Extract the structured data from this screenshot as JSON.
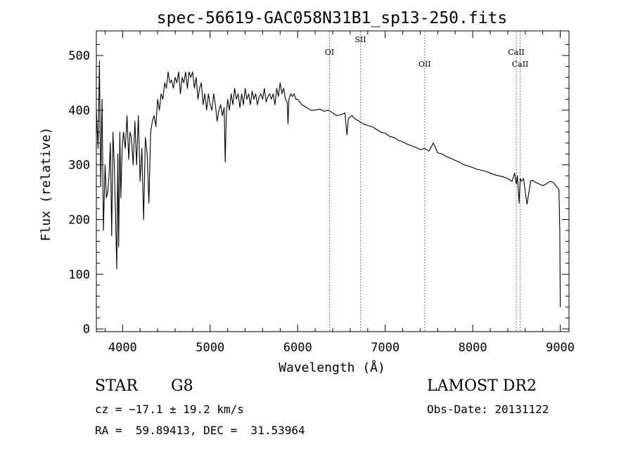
{
  "chart_data": {
    "type": "line",
    "title": "spec-56619-GAC058N31B1_sp13-250.fits",
    "xlabel": "Wavelength (Å)",
    "ylabel": "Flux (relative)",
    "xlim": [
      3700,
      9100
    ],
    "ylim": [
      -5,
      545
    ],
    "xticks": [
      4000,
      5000,
      6000,
      7000,
      8000,
      9000
    ],
    "yticks": [
      0,
      100,
      200,
      300,
      400,
      500
    ],
    "grid": false,
    "series": [
      {
        "line_color": "#000000",
        "x": [
          3700,
          3720,
          3735,
          3750,
          3765,
          3780,
          3800,
          3815,
          3830,
          3845,
          3860,
          3875,
          3890,
          3905,
          3920,
          3933,
          3945,
          3955,
          3968,
          3980,
          3995,
          4010,
          4030,
          4050,
          4070,
          4085,
          4100,
          4120,
          4140,
          4160,
          4180,
          4200,
          4220,
          4240,
          4260,
          4280,
          4300,
          4320,
          4340,
          4360,
          4380,
          4400,
          4420,
          4440,
          4460,
          4480,
          4500,
          4520,
          4540,
          4560,
          4580,
          4600,
          4620,
          4640,
          4660,
          4680,
          4700,
          4720,
          4740,
          4760,
          4780,
          4800,
          4820,
          4840,
          4860,
          4880,
          4900,
          4920,
          4940,
          4960,
          4980,
          5000,
          5020,
          5040,
          5060,
          5080,
          5100,
          5120,
          5140,
          5160,
          5172,
          5184,
          5200,
          5220,
          5240,
          5260,
          5280,
          5300,
          5320,
          5340,
          5360,
          5380,
          5400,
          5420,
          5440,
          5460,
          5480,
          5500,
          5520,
          5540,
          5560,
          5580,
          5600,
          5620,
          5640,
          5660,
          5680,
          5700,
          5720,
          5740,
          5760,
          5780,
          5800,
          5820,
          5840,
          5860,
          5880,
          5890,
          5900,
          5910,
          5920,
          5940,
          5960,
          5980,
          6000,
          6050,
          6100,
          6150,
          6200,
          6250,
          6300,
          6350,
          6400,
          6450,
          6500,
          6540,
          6563,
          6580,
          6620,
          6650,
          6700,
          6750,
          6800,
          6850,
          6900,
          6950,
          7000,
          7050,
          7100,
          7150,
          7200,
          7250,
          7300,
          7350,
          7400,
          7450,
          7500,
          7550,
          7600,
          7650,
          7700,
          7750,
          7800,
          7850,
          7900,
          7950,
          8000,
          8050,
          8100,
          8150,
          8200,
          8250,
          8300,
          8350,
          8400,
          8450,
          8480,
          8498,
          8510,
          8530,
          8542,
          8555,
          8580,
          8620,
          8662,
          8680,
          8720,
          8760,
          8800,
          8840,
          8880,
          8920,
          8950,
          8970,
          8985,
          8995,
          9000
        ],
        "y": [
          400,
          330,
          490,
          260,
          420,
          180,
          300,
          240,
          250,
          280,
          340,
          170,
          360,
          300,
          200,
          110,
          320,
          150,
          360,
          240,
          330,
          360,
          330,
          390,
          310,
          360,
          350,
          300,
          380,
          300,
          390,
          270,
          330,
          200,
          350,
          320,
          230,
          360,
          380,
          390,
          370,
          420,
          400,
          430,
          420,
          450,
          440,
          470,
          450,
          455,
          440,
          460,
          450,
          470,
          430,
          460,
          450,
          470,
          440,
          470,
          460,
          470,
          440,
          460,
          420,
          440,
          450,
          410,
          430,
          400,
          430,
          410,
          400,
          430,
          410,
          380,
          400,
          410,
          390,
          405,
          305,
          390,
          420,
          400,
          430,
          410,
          440,
          420,
          430,
          405,
          430,
          410,
          440,
          420,
          430,
          410,
          435,
          420,
          430,
          410,
          425,
          430,
          420,
          440,
          415,
          425,
          430,
          420,
          430,
          410,
          440,
          425,
          450,
          430,
          440,
          420,
          415,
          375,
          420,
          425,
          430,
          425,
          430,
          420,
          420,
          410,
          405,
          400,
          400,
          402,
          398,
          400,
          395,
          390,
          392,
          395,
          355,
          385,
          390,
          385,
          380,
          375,
          372,
          370,
          365,
          360,
          358,
          352,
          350,
          345,
          342,
          338,
          335,
          332,
          328,
          330,
          325,
          340,
          322,
          320,
          315,
          312,
          308,
          305,
          300,
          298,
          295,
          292,
          290,
          288,
          285,
          282,
          280,
          278,
          275,
          270,
          285,
          265,
          280,
          230,
          275,
          270,
          275,
          228,
          270,
          272,
          268,
          265,
          262,
          265,
          270,
          268,
          262,
          258,
          255,
          180,
          40
        ]
      }
    ],
    "lines": [
      {
        "label": "OI",
        "x": 6364
      },
      {
        "label": "SII",
        "x": 6718
      },
      {
        "label": "OII",
        "x": 7451
      },
      {
        "label": "CaII",
        "x": 8498
      },
      {
        "label": "CaII",
        "x": 8542
      }
    ]
  },
  "info": {
    "class_label": "STAR",
    "subclass": "G8",
    "survey": "LAMOST DR2",
    "redshift_line": "cz = −17.1 ± 19.2 km/s",
    "obs_date": "Obs-Date: 20131122",
    "coords": "RA =  59.89413, DEC =  31.53964"
  }
}
